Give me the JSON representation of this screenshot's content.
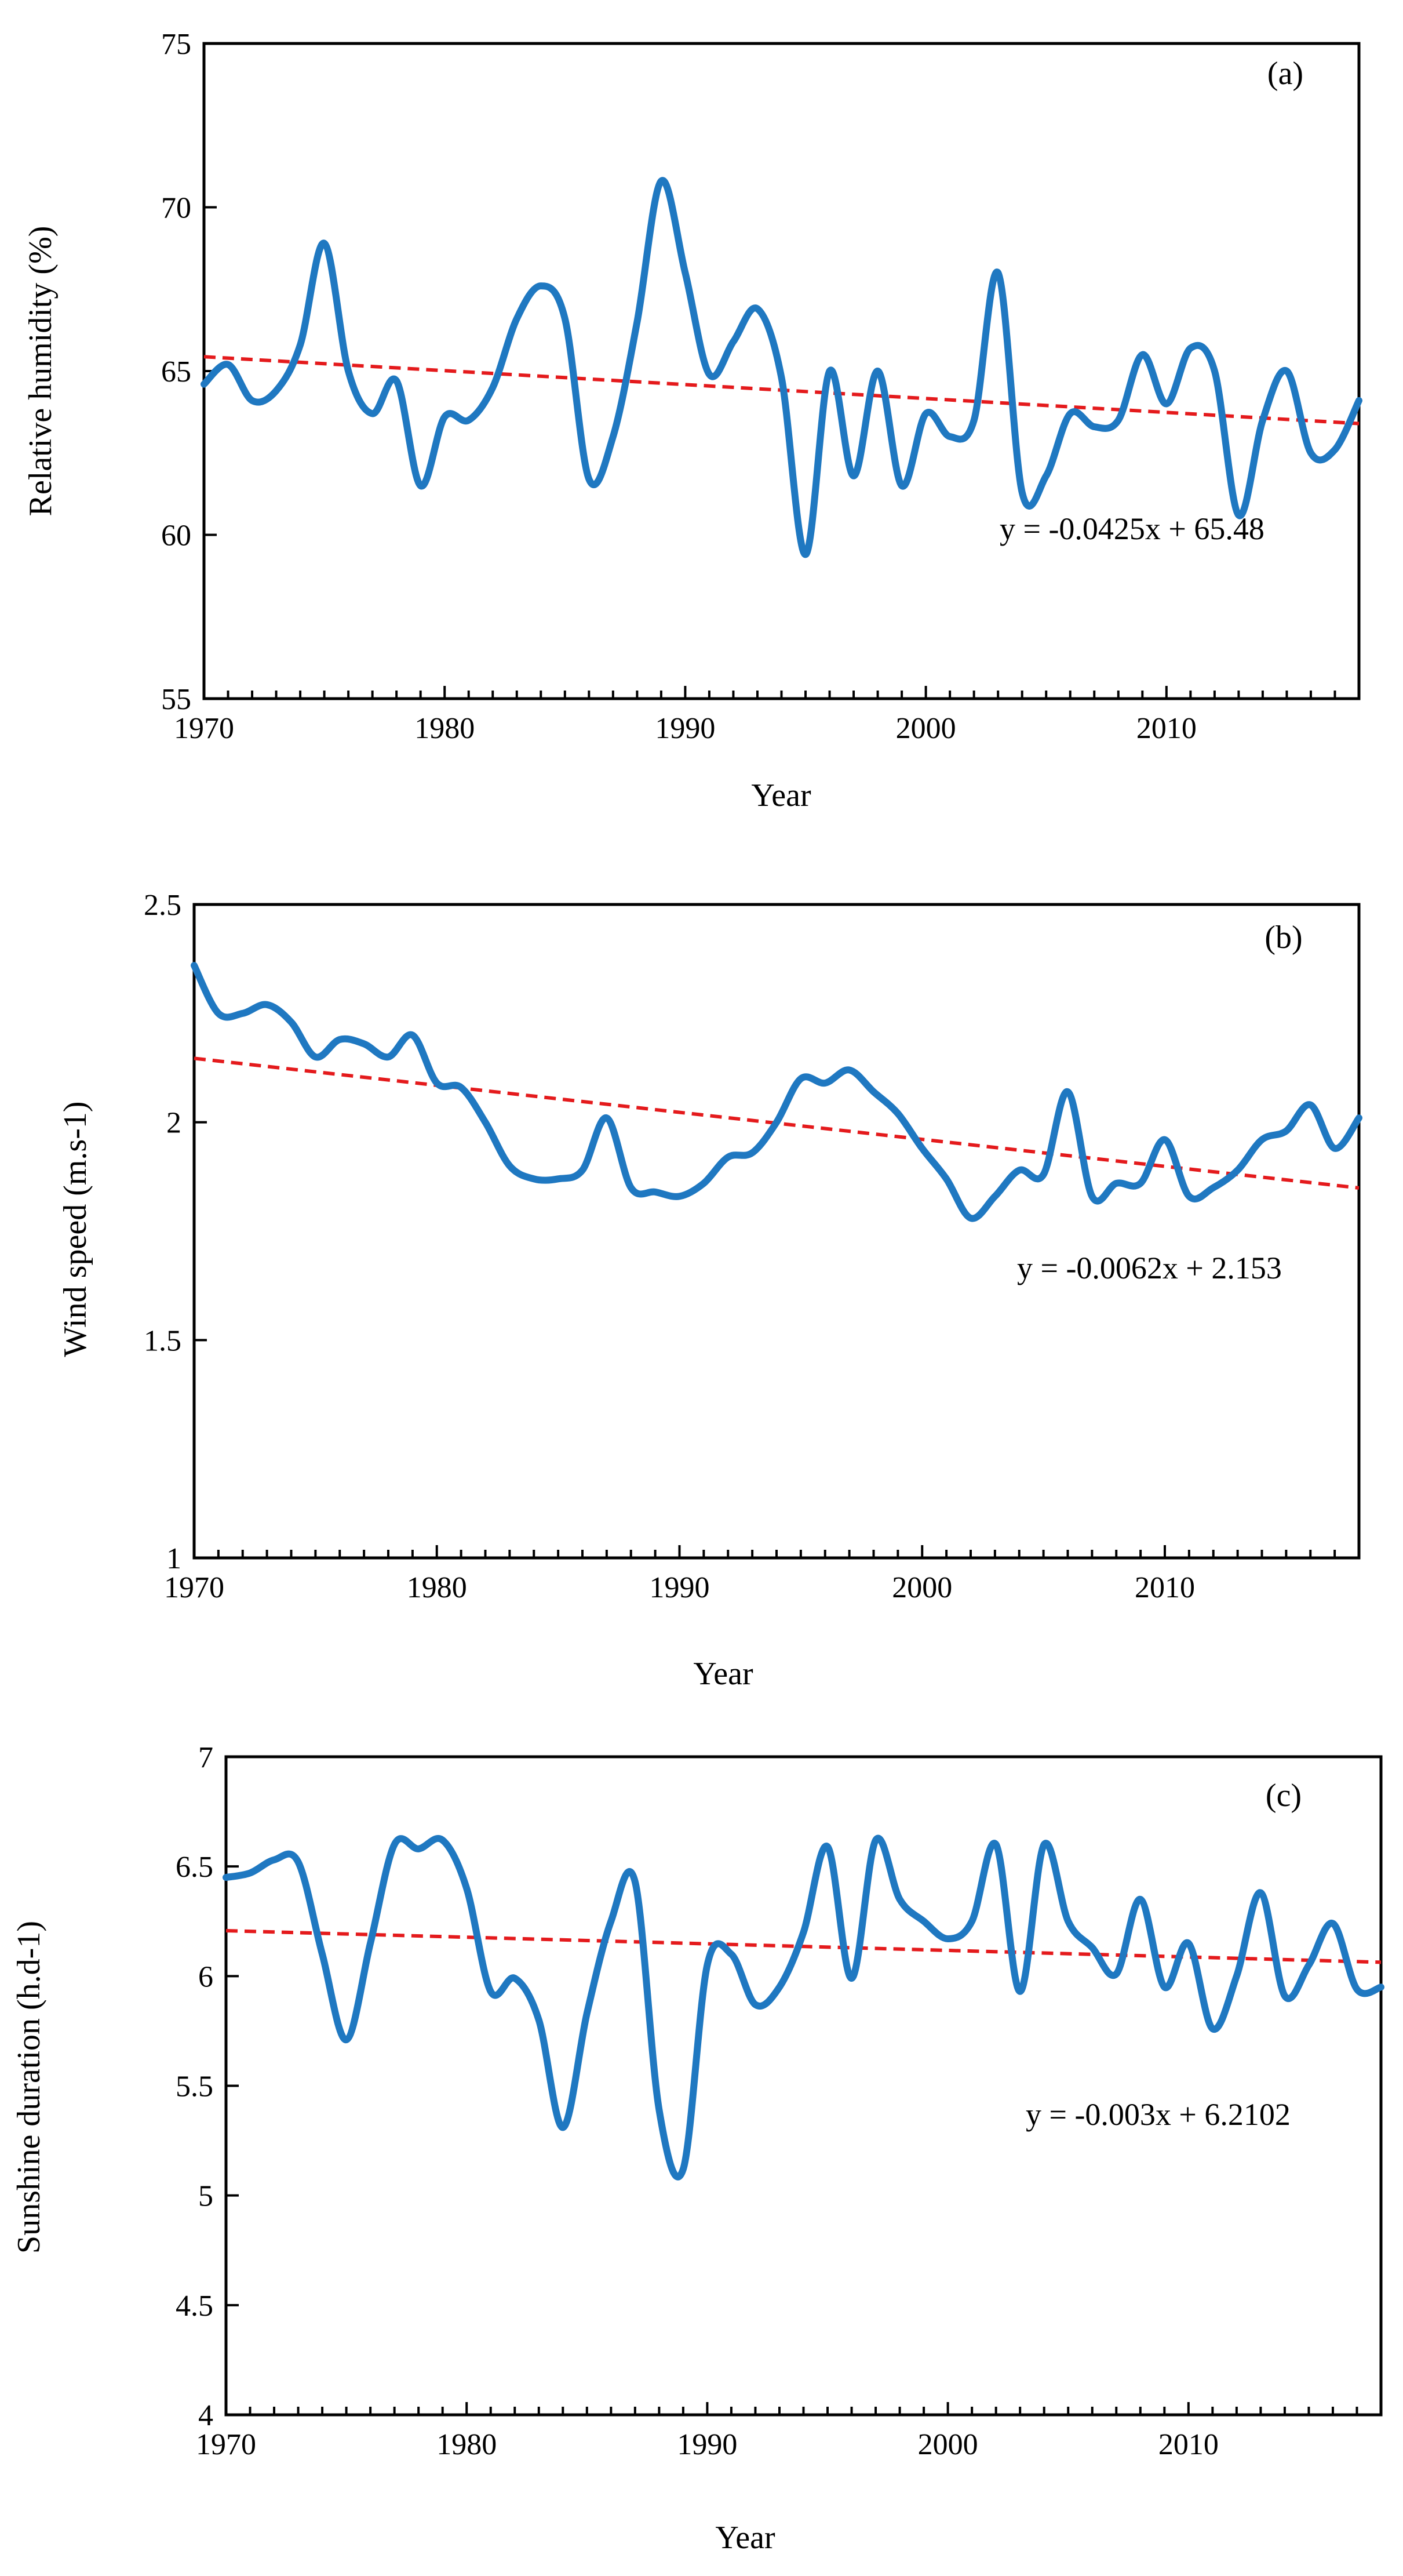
{
  "colors": {
    "series": "#1f78c1",
    "trend": "#e41a1c",
    "axis": "#000000"
  },
  "chart_data": [
    {
      "type": "line",
      "panel_label": "(a)",
      "xlabel": "Year",
      "ylabel": "Relative humidity (%)",
      "xlim": [
        1970,
        2018
      ],
      "ylim": [
        55,
        75
      ],
      "x_ticks": [
        1970,
        1980,
        1990,
        2000,
        2010
      ],
      "y_ticks": [
        55,
        60,
        65,
        70,
        75
      ],
      "grid": false,
      "series": [
        {
          "x": [
            1970,
            1971,
            1972,
            1973,
            1974,
            1975,
            1976,
            1977,
            1978,
            1979,
            1980,
            1981,
            1982,
            1983,
            1984,
            1985,
            1986,
            1987,
            1988,
            1989,
            1990,
            1991,
            1992,
            1993,
            1994,
            1995,
            1996,
            1997,
            1998,
            1999,
            2000,
            2001,
            2002,
            2003,
            2004,
            2005,
            2006,
            2007,
            2008,
            2009,
            2010,
            2011,
            2012,
            2013,
            2014,
            2015,
            2016,
            2017,
            2018
          ],
          "values": [
            64.6,
            65.2,
            64.1,
            64.4,
            65.8,
            68.9,
            65.0,
            63.7,
            64.7,
            61.5,
            63.6,
            63.5,
            64.5,
            66.6,
            67.6,
            66.6,
            61.7,
            63.0,
            66.5,
            70.8,
            68.0,
            64.9,
            65.9,
            66.9,
            64.8,
            59.4,
            65.0,
            61.8,
            65.0,
            61.5,
            63.7,
            63.0,
            63.5,
            68.0,
            61.3,
            61.8,
            63.7,
            63.3,
            63.5,
            65.5,
            64.0,
            65.7,
            65.0,
            60.6,
            63.5,
            65.0,
            62.5,
            62.6,
            64.1
          ]
        }
      ],
      "trend": {
        "equation": "y = -0.0425x + 65.48",
        "slope": -0.0425,
        "intercept": 65.48
      }
    },
    {
      "type": "line",
      "panel_label": "(b)",
      "xlabel": "Year",
      "ylabel": "Wind speed (m.s-1)",
      "xlim": [
        1970,
        2018
      ],
      "ylim": [
        1,
        2.5
      ],
      "x_ticks": [
        1970,
        1980,
        1990,
        2000,
        2010
      ],
      "y_ticks": [
        1,
        1.5,
        2,
        2.5
      ],
      "grid": false,
      "series": [
        {
          "x": [
            1970,
            1971,
            1972,
            1973,
            1974,
            1975,
            1976,
            1977,
            1978,
            1979,
            1980,
            1981,
            1982,
            1983,
            1984,
            1985,
            1986,
            1987,
            1988,
            1989,
            1990,
            1991,
            1992,
            1993,
            1994,
            1995,
            1996,
            1997,
            1998,
            1999,
            2000,
            2001,
            2002,
            2003,
            2004,
            2005,
            2006,
            2007,
            2008,
            2009,
            2010,
            2011,
            2012,
            2013,
            2014,
            2015,
            2016,
            2017,
            2018
          ],
          "values": [
            2.36,
            2.25,
            2.25,
            2.27,
            2.23,
            2.15,
            2.19,
            2.18,
            2.15,
            2.2,
            2.09,
            2.08,
            2.0,
            1.9,
            1.87,
            1.87,
            1.89,
            2.01,
            1.85,
            1.84,
            1.83,
            1.86,
            1.92,
            1.93,
            2.0,
            2.1,
            2.09,
            2.12,
            2.07,
            2.02,
            1.94,
            1.87,
            1.78,
            1.83,
            1.89,
            1.88,
            2.07,
            1.83,
            1.86,
            1.86,
            1.96,
            1.83,
            1.85,
            1.89,
            1.96,
            1.98,
            2.04,
            1.94,
            2.01
          ]
        }
      ],
      "trend": {
        "equation": "y = -0.0062x + 2.153",
        "slope": -0.0062,
        "intercept": 2.153
      }
    },
    {
      "type": "line",
      "panel_label": "(c)",
      "xlabel": "Year",
      "ylabel": "Sunshine duration (h.d-1)",
      "xlim": [
        1970,
        2018
      ],
      "ylim": [
        4,
        7
      ],
      "x_ticks": [
        1970,
        1980,
        1990,
        2000,
        2010
      ],
      "y_ticks": [
        4,
        4.5,
        5,
        5.5,
        6,
        6.5,
        7
      ],
      "grid": false,
      "series": [
        {
          "x": [
            1970,
            1971,
            1972,
            1973,
            1974,
            1975,
            1976,
            1977,
            1978,
            1979,
            1980,
            1981,
            1982,
            1983,
            1984,
            1985,
            1986,
            1987,
            1988,
            1989,
            1990,
            1991,
            1992,
            1993,
            1994,
            1995,
            1996,
            1997,
            1998,
            1999,
            2000,
            2001,
            2002,
            2003,
            2004,
            2005,
            2006,
            2007,
            2008,
            2009,
            2010,
            2011,
            2012,
            2013,
            2014,
            2015,
            2016,
            2017,
            2018
          ],
          "values": [
            6.45,
            6.47,
            6.53,
            6.52,
            6.1,
            5.71,
            6.15,
            6.6,
            6.58,
            6.62,
            6.4,
            5.93,
            5.99,
            5.8,
            5.31,
            5.83,
            6.25,
            6.43,
            5.39,
            5.12,
            6.05,
            6.1,
            5.87,
            5.95,
            6.2,
            6.59,
            5.99,
            6.62,
            6.35,
            6.25,
            6.17,
            6.25,
            6.6,
            5.93,
            6.6,
            6.25,
            6.13,
            6.01,
            6.35,
            5.95,
            6.15,
            5.76,
            6.0,
            6.38,
            5.91,
            6.05,
            6.24,
            5.94,
            5.95
          ]
        }
      ],
      "trend": {
        "equation": "y = -0.003x + 6.2102",
        "slope": -0.003,
        "intercept": 6.2102
      }
    }
  ]
}
